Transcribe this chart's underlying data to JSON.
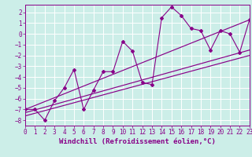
{
  "xlabel": "Windchill (Refroidissement éolien,°C)",
  "bg_color": "#cceee8",
  "grid_color": "#aadddd",
  "line_color": "#880088",
  "x_data": [
    0,
    1,
    2,
    3,
    4,
    5,
    6,
    7,
    8,
    9,
    10,
    11,
    12,
    13,
    14,
    15,
    16,
    17,
    18,
    19,
    20,
    21,
    22,
    23
  ],
  "y_data": [
    -7.0,
    -7.0,
    -8.0,
    -6.2,
    -5.0,
    -3.3,
    -7.0,
    -5.2,
    -3.5,
    -3.5,
    -0.7,
    -1.6,
    -4.5,
    -4.7,
    1.5,
    2.5,
    1.7,
    0.5,
    0.3,
    -1.5,
    0.3,
    0.0,
    -1.7,
    1.3
  ],
  "trend_lines": [
    {
      "x0": 0,
      "y0": -7.0,
      "x1": 23,
      "y1": 1.3
    },
    {
      "x0": 0,
      "y0": -7.3,
      "x1": 23,
      "y1": -1.5
    },
    {
      "x0": 0,
      "y0": -7.6,
      "x1": 23,
      "y1": -2.0
    }
  ],
  "xlim": [
    0,
    23
  ],
  "ylim": [
    -8.5,
    2.7
  ],
  "yticks": [
    2,
    1,
    0,
    -1,
    -2,
    -3,
    -4,
    -5,
    -6,
    -7,
    -8
  ],
  "xticks": [
    0,
    1,
    2,
    3,
    4,
    5,
    6,
    7,
    8,
    9,
    10,
    11,
    12,
    13,
    14,
    15,
    16,
    17,
    18,
    19,
    20,
    21,
    22,
    23
  ],
  "tick_label_fontsize": 5.5,
  "xlabel_fontsize": 6.5
}
